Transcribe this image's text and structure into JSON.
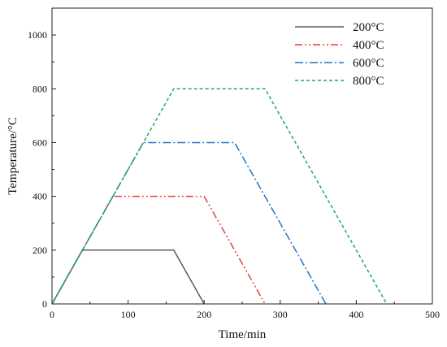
{
  "chart_data": {
    "type": "line",
    "xlabel": "Time/min",
    "ylabel": "Temperature/°C",
    "xlim": [
      0,
      500
    ],
    "ylim": [
      0,
      1100
    ],
    "xticks": [
      "0",
      "100",
      "200",
      "300",
      "400",
      "500"
    ],
    "yticks": [
      "0",
      "200",
      "400",
      "600",
      "800",
      "1000"
    ],
    "grid": false,
    "legend_position": "top-right",
    "series": [
      {
        "name": "200°C",
        "color": "#5a5a5a",
        "dash": "solid",
        "x": [
          0,
          40,
          160,
          200
        ],
        "y": [
          0,
          200,
          200,
          0
        ]
      },
      {
        "name": "400°C",
        "color": "#ee3b3b",
        "dash": "dash-dot-dot",
        "x": [
          0,
          80,
          200,
          280
        ],
        "y": [
          0,
          400,
          400,
          0
        ]
      },
      {
        "name": "600°C",
        "color": "#1f77c9",
        "dash": "dash-dot",
        "x": [
          0,
          120,
          240,
          360
        ],
        "y": [
          0,
          600,
          600,
          0
        ]
      },
      {
        "name": "800°C",
        "color": "#1aab5e",
        "dash": "short-dash",
        "x": [
          0,
          160,
          280,
          440
        ],
        "y": [
          0,
          800,
          800,
          0
        ]
      }
    ]
  }
}
